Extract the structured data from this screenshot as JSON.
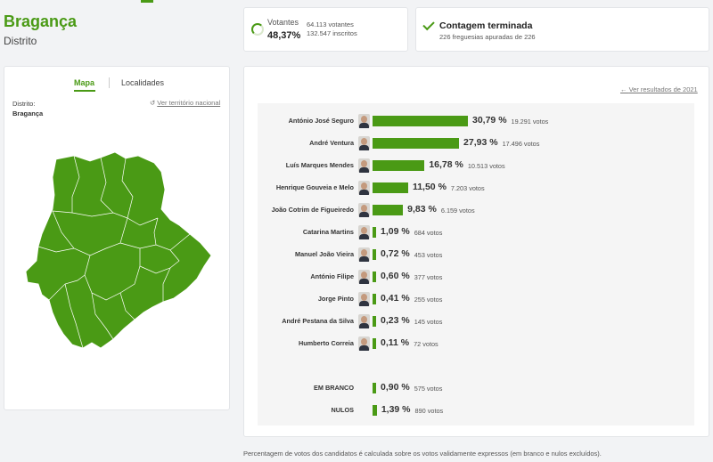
{
  "header": {
    "title": "Bragança",
    "subtitle": "Distrito"
  },
  "voters": {
    "label": "Votantes",
    "percent": "48,37%",
    "count": "64.113 votantes",
    "registered": "132.547 inscritos"
  },
  "count": {
    "title": "Contagem terminada",
    "detail": "226 freguesias apuradas de 226"
  },
  "tabs": {
    "map": "Mapa",
    "localities": "Localidades"
  },
  "map": {
    "district_label": "Distrito:",
    "district_value": "Bragança",
    "national_link": "Ver território nacional",
    "fill_color": "#4a9a15"
  },
  "results": {
    "previous_link": "Ver resultados de 2021",
    "bar_color": "#4a9a15",
    "candidates": [
      {
        "name": "António José Seguro",
        "percent": 30.79,
        "percent_label": "30,79 %",
        "votes": "19.291 votos",
        "photo": "candidate-photo"
      },
      {
        "name": "André Ventura",
        "percent": 27.93,
        "percent_label": "27,93 %",
        "votes": "17.496 votos",
        "photo": "candidate-photo"
      },
      {
        "name": "Luís Marques Mendes",
        "percent": 16.78,
        "percent_label": "16,78 %",
        "votes": "10.513 votos",
        "photo": "candidate-photo"
      },
      {
        "name": "Henrique Gouveia e Melo",
        "percent": 11.5,
        "percent_label": "11,50 %",
        "votes": "7.203 votos",
        "photo": "candidate-photo"
      },
      {
        "name": "João Cotrim de Figueiredo",
        "percent": 9.83,
        "percent_label": "9,83 %",
        "votes": "6.159 votos",
        "photo": "candidate-photo"
      },
      {
        "name": "Catarina Martins",
        "percent": 1.09,
        "percent_label": "1,09 %",
        "votes": "684 votos",
        "photo": "candidate-photo"
      },
      {
        "name": "Manuel João Vieira",
        "percent": 0.72,
        "percent_label": "0,72 %",
        "votes": "453 votos",
        "photo": "candidate-photo"
      },
      {
        "name": "António Filipe",
        "percent": 0.6,
        "percent_label": "0,60 %",
        "votes": "377 votos",
        "photo": "candidate-photo"
      },
      {
        "name": "Jorge Pinto",
        "percent": 0.41,
        "percent_label": "0,41 %",
        "votes": "255 votos",
        "photo": "candidate-photo"
      },
      {
        "name": "André Pestana da Silva",
        "percent": 0.23,
        "percent_label": "0,23 %",
        "votes": "145 votos",
        "photo": "candidate-photo"
      },
      {
        "name": "Humberto Correia",
        "percent": 0.11,
        "percent_label": "0,11 %",
        "votes": "72 votos",
        "photo": "candidate-photo"
      }
    ],
    "other": [
      {
        "name": "EM BRANCO",
        "percent": 0.9,
        "percent_label": "0,90 %",
        "votes": "575 votos"
      },
      {
        "name": "NULOS",
        "percent": 1.39,
        "percent_label": "1,39 %",
        "votes": "890 votos"
      }
    ]
  },
  "footnote": "Percentagem de votos dos candidatos é calculada sobre os votos validamente expressos (em branco e nulos excluídos)."
}
